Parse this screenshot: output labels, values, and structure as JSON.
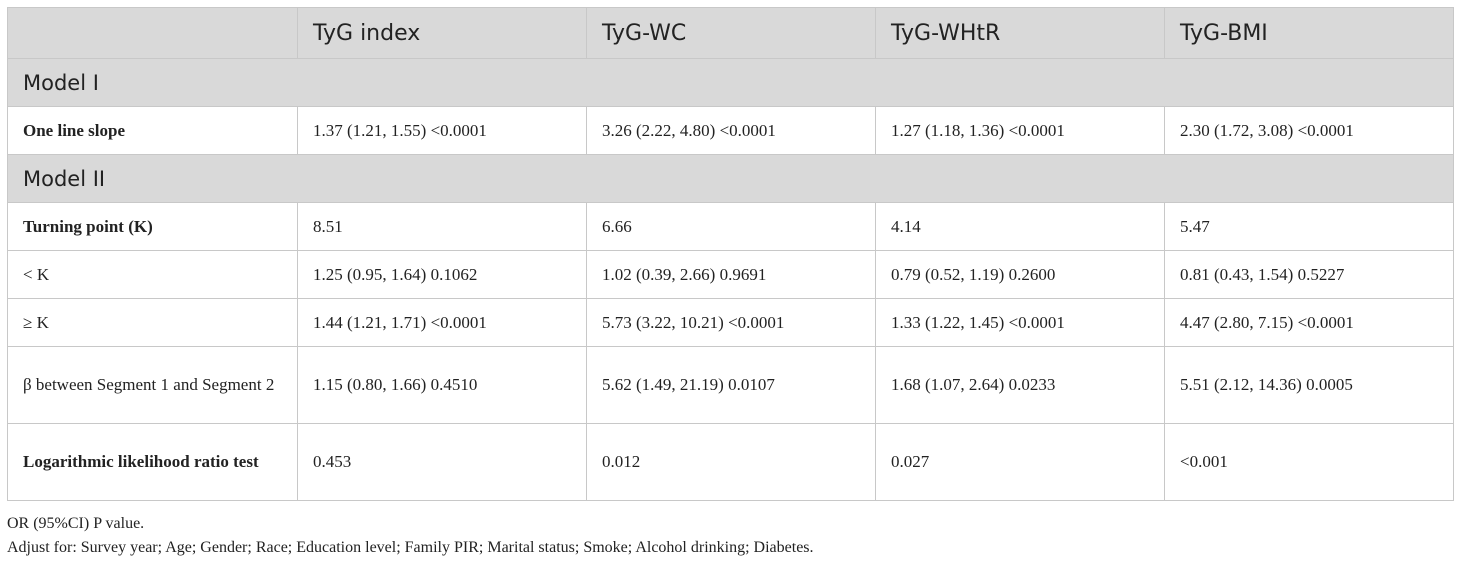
{
  "table": {
    "headers": [
      "",
      "TyG index",
      "TyG-WC",
      "TyG-WHtR",
      "TyG-BMI"
    ],
    "model1_label": "Model I",
    "model2_label": "Model II",
    "rows": [
      {
        "label": "One line slope",
        "values": [
          "1.37 (1.21, 1.55) <0.0001",
          "3.26 (2.22, 4.80) <0.0001",
          "1.27 (1.18, 1.36) <0.0001",
          "2.30 (1.72, 3.08) <0.0001"
        ]
      },
      {
        "label": "Turning point (K)",
        "values": [
          "8.51",
          "6.66",
          "4.14",
          "5.47"
        ]
      },
      {
        "label": "< K",
        "values": [
          "1.25 (0.95, 1.64) 0.1062",
          "1.02 (0.39, 2.66) 0.9691",
          "0.79 (0.52, 1.19) 0.2600",
          "0.81 (0.43, 1.54) 0.5227"
        ]
      },
      {
        "label": "≥ K",
        "values": [
          "1.44 (1.21, 1.71) <0.0001",
          "5.73 (3.22, 10.21) <0.0001",
          "1.33 (1.22, 1.45) <0.0001",
          "4.47 (2.80, 7.15) <0.0001"
        ]
      },
      {
        "label": "β between Segment 1 and Segment 2",
        "values": [
          "1.15 (0.80, 1.66) 0.4510",
          "5.62 (1.49, 21.19) 0.0107",
          "1.68 (1.07, 2.64) 0.0233",
          "5.51 (2.12, 14.36) 0.0005"
        ]
      },
      {
        "label": "Logarithmic likelihood ratio test",
        "values": [
          "0.453",
          "0.012",
          "0.027",
          "<0.001"
        ]
      }
    ]
  },
  "notes": {
    "line1": "OR (95%CI) P value.",
    "line2": "Adjust for: Survey year; Age; Gender; Race; Education level; Family PIR; Marital status; Smoke; Alcohol drinking; Diabetes."
  }
}
